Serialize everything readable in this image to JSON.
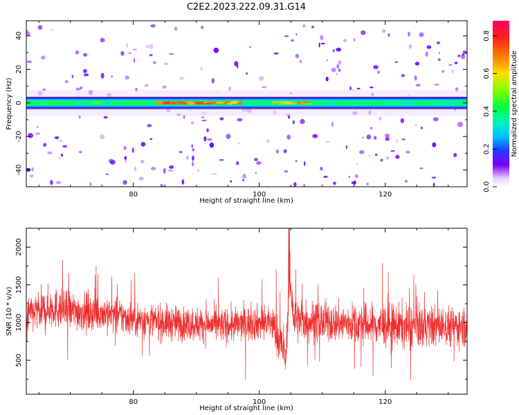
{
  "title": "C2E2.2023.222.09.31.G14",
  "chart_data": [
    {
      "type": "heatmap",
      "panel": "spectrogram",
      "xlabel": "Height of straight line (km)",
      "ylabel": "Frequency (Hz)",
      "xlim": [
        63,
        133
      ],
      "ylim": [
        -50,
        49
      ],
      "xticks": [
        80,
        100,
        120
      ],
      "yticks": [
        -40,
        -20,
        0,
        20,
        40
      ],
      "band": {
        "center_hz": 0,
        "half_width_hz": 3.5,
        "segments": [
          {
            "x0": 63,
            "x1": 84,
            "peak": 0.5
          },
          {
            "x0": 84,
            "x1": 92,
            "peak": 0.85
          },
          {
            "x0": 92,
            "x1": 97,
            "peak": 0.8
          },
          {
            "x0": 97,
            "x1": 102,
            "peak": 0.45
          },
          {
            "x0": 102,
            "x1": 106,
            "peak": 0.7
          },
          {
            "x0": 106,
            "x1": 108,
            "peak": 0.8
          },
          {
            "x0": 108,
            "x1": 133,
            "peak": 0.45
          }
        ]
      },
      "colorbar": {
        "label": "Normalized spectral amplitude",
        "range": [
          0.0,
          0.88
        ],
        "ticks": [
          "0.0",
          "0.2",
          "0.4",
          "0.6",
          "0.8"
        ],
        "tick_values": [
          0.0,
          0.2,
          0.4,
          0.6,
          0.8
        ]
      }
    },
    {
      "type": "line",
      "panel": "snr",
      "xlabel": "Height of straight line (km)",
      "ylabel": "SNR (10 * v/v)",
      "xlim": [
        63,
        133
      ],
      "ylim": [
        50,
        2250
      ],
      "xticks": [
        80,
        100,
        120
      ],
      "yticks": [
        500,
        1000,
        1500,
        2000
      ],
      "line_color": "#ee3030",
      "series": [
        {
          "x": [
            63,
            67,
            70,
            75,
            80,
            85,
            90,
            95,
            100,
            102,
            103.5,
            104.2,
            104.8,
            105.5,
            108,
            112,
            116,
            120,
            124,
            128,
            133
          ],
          "y_mean": [
            1100,
            1200,
            1150,
            1130,
            1050,
            1000,
            980,
            960,
            1000,
            1000,
            700,
            500,
            1600,
            1050,
            1020,
            1000,
            980,
            960,
            950,
            950,
            960
          ],
          "y_spread": [
            380,
            420,
            400,
            380,
            360,
            360,
            350,
            350,
            360,
            380,
            500,
            300,
            550,
            450,
            420,
            400,
            420,
            450,
            450,
            420,
            400
          ]
        }
      ]
    }
  ]
}
